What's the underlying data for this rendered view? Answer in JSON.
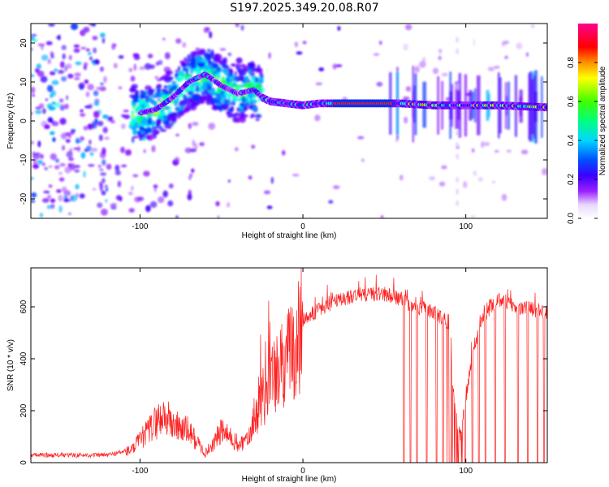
{
  "title": "S197.2025.349.20.08.R07",
  "chart_data": [
    {
      "type": "heatmap",
      "xlabel": "Height of straight line (km)",
      "ylabel": "Frequency (Hz)",
      "xlim": [
        -167,
        150
      ],
      "ylim": [
        -25,
        25
      ],
      "xticks": [
        -100,
        0,
        100
      ],
      "yticks": [
        -20,
        -10,
        0,
        10,
        20
      ],
      "colorbar": {
        "label": "Normalized spectral amplitude",
        "range": [
          0,
          1
        ],
        "ticks": [
          "0.0",
          "0.2",
          "0.4",
          "0.6",
          "0.8"
        ]
      },
      "ridge": {
        "name": "dominant frequency track",
        "x": [
          -100,
          -90,
          -80,
          -70,
          -60,
          -50,
          -40,
          -30,
          -25,
          -20,
          -10,
          0,
          10,
          20,
          40,
          60,
          80,
          100,
          120,
          150
        ],
        "y": [
          2,
          3,
          6,
          10,
          12,
          9,
          7,
          8,
          6,
          5,
          4.5,
          4,
          4.5,
          4.5,
          4.5,
          4.5,
          4,
          4,
          4,
          3.5
        ]
      },
      "colors": {
        "palette": [
          "#ffffff",
          "#7a00ff",
          "#0000ff",
          "#00e5ff",
          "#00ff00",
          "#ffff00",
          "#ff0000",
          "#ff0080"
        ]
      }
    },
    {
      "type": "line",
      "xlabel": "Height of straight line (km)",
      "ylabel": "SNR (10 * v/v)",
      "xlim": [
        -167,
        150
      ],
      "ylim": [
        0,
        750
      ],
      "xticks": [
        -100,
        0,
        100
      ],
      "yticks": [
        0,
        200,
        400,
        600
      ],
      "series": [
        {
          "name": "SNR",
          "color": "#ff2020",
          "x": [
            -167,
            -120,
            -105,
            -95,
            -90,
            -85,
            -80,
            -75,
            -70,
            -60,
            -55,
            -50,
            -40,
            -35,
            -30,
            -25,
            -22,
            -20,
            -15,
            -10,
            -5,
            0,
            10,
            20,
            30,
            40,
            50,
            55,
            60,
            62,
            70,
            80,
            90,
            93,
            97,
            100,
            105,
            110,
            115,
            120,
            125,
            130,
            140,
            150
          ],
          "y": [
            20,
            20,
            40,
            100,
            130,
            150,
            120,
            110,
            100,
            30,
            60,
            100,
            60,
            100,
            200,
            280,
            320,
            340,
            380,
            430,
            500,
            550,
            590,
            620,
            640,
            650,
            650,
            640,
            630,
            620,
            600,
            580,
            540,
            200,
            100,
            250,
            450,
            550,
            600,
            630,
            620,
            600,
            590,
            580
          ]
        }
      ],
      "dropouts_x": [
        62,
        66,
        70,
        76,
        82,
        86,
        90,
        94,
        104,
        108,
        112,
        118,
        124,
        132,
        138,
        144,
        148
      ]
    }
  ]
}
